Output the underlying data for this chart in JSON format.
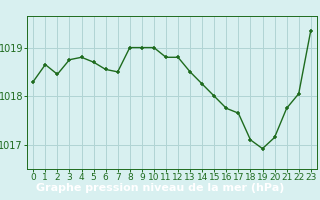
{
  "x": [
    0,
    1,
    2,
    3,
    4,
    5,
    6,
    7,
    8,
    9,
    10,
    11,
    12,
    13,
    14,
    15,
    16,
    17,
    18,
    19,
    20,
    21,
    22,
    23
  ],
  "y": [
    1018.3,
    1018.65,
    1018.45,
    1018.75,
    1018.8,
    1018.7,
    1018.55,
    1018.5,
    1019.0,
    1019.0,
    1019.0,
    1018.8,
    1018.8,
    1018.5,
    1018.25,
    1018.0,
    1017.75,
    1017.65,
    1017.1,
    1016.92,
    1017.15,
    1017.75,
    1018.05,
    1019.35
  ],
  "line_color": "#1e6b1e",
  "marker_color": "#1e6b1e",
  "bg_color": "#d8f0f0",
  "plot_bg_color": "#d8f0f0",
  "grid_color": "#b0d4d4",
  "bottom_bar_color": "#2d6e2d",
  "bottom_text_color": "#ffffff",
  "xlabel": "Graphe pression niveau de la mer (hPa)",
  "xlabel_fontsize": 8,
  "yticks": [
    1017,
    1018,
    1019
  ],
  "ylim": [
    1016.5,
    1019.65
  ],
  "xlim": [
    -0.5,
    23.5
  ],
  "xtick_labels": [
    "0",
    "1",
    "2",
    "3",
    "4",
    "5",
    "6",
    "7",
    "8",
    "9",
    "10",
    "11",
    "12",
    "13",
    "14",
    "15",
    "16",
    "17",
    "18",
    "19",
    "20",
    "21",
    "22",
    "23"
  ],
  "tick_fontsize": 6.5,
  "axis_color": "#1e6b1e",
  "spine_color": "#1e6b1e",
  "ytick_fontsize": 7
}
